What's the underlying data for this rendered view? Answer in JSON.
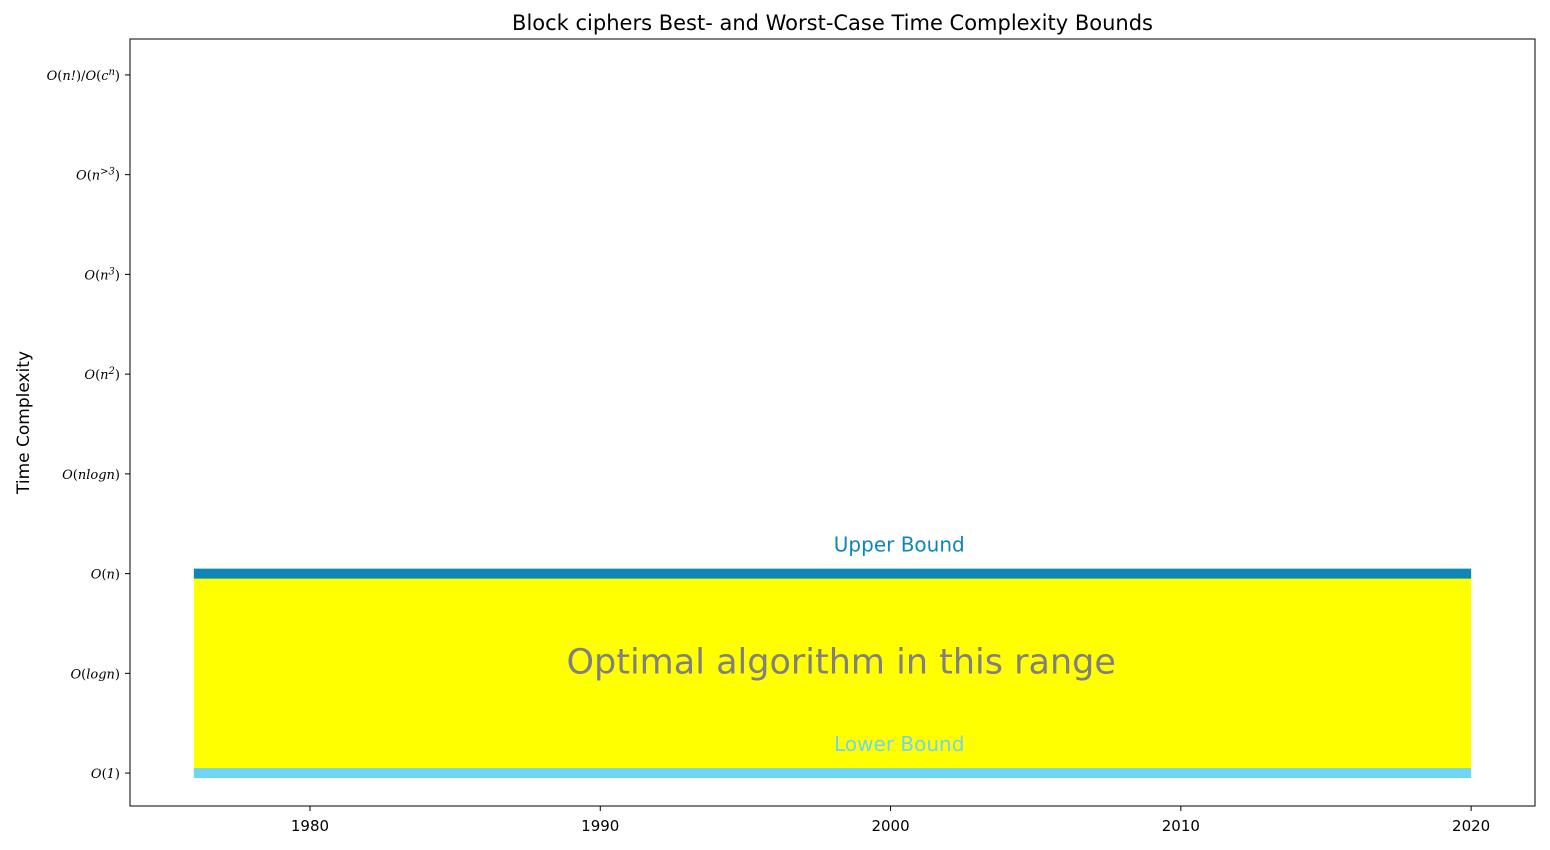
{
  "chart_data": {
    "type": "line",
    "title": "Block ciphers Best- and Worst-Case Time Complexity Bounds",
    "xlabel": "",
    "ylabel": "Time Complexity",
    "xlim": [
      1973.8,
      2022.2
    ],
    "ylim": [
      -0.33,
      7.36
    ],
    "x_ticks": [
      1980,
      1990,
      2000,
      2010,
      2020
    ],
    "y_ticks": [
      {
        "value": 0,
        "label": "O(1)"
      },
      {
        "value": 1,
        "label": "O(logn)"
      },
      {
        "value": 2,
        "label": "O(n)"
      },
      {
        "value": 3,
        "label": "O(nlogn)"
      },
      {
        "value": 4,
        "label": "O(n^2)"
      },
      {
        "value": 5,
        "label": "O(n^3)"
      },
      {
        "value": 6,
        "label": "O(n^>3)"
      },
      {
        "value": 7,
        "label": "O(n!)/O(c^n)"
      }
    ],
    "series": [
      {
        "name": "Upper Bound",
        "x": [
          1976,
          2020
        ],
        "y": [
          2,
          2
        ],
        "color": "#0e86b8"
      },
      {
        "name": "Lower Bound",
        "x": [
          1976,
          2020
        ],
        "y": [
          0,
          0
        ],
        "color": "#6fd5f3"
      }
    ],
    "fill_between": {
      "x": [
        1976,
        2020
      ],
      "y_lower": 0,
      "y_upper": 2,
      "color": "#ffff00"
    },
    "annotations": [
      {
        "text": "Upper Bound",
        "x": 2000.3,
        "y": 2.28,
        "color": "#0e86b8"
      },
      {
        "text": "Lower Bound",
        "x": 2000.3,
        "y": 0.28,
        "color": "#6fd5f3"
      },
      {
        "text": "Optimal algorithm in this range",
        "x": 1998.3,
        "y": 1.12,
        "color": "#808080"
      }
    ],
    "grid": false,
    "legend": false
  }
}
